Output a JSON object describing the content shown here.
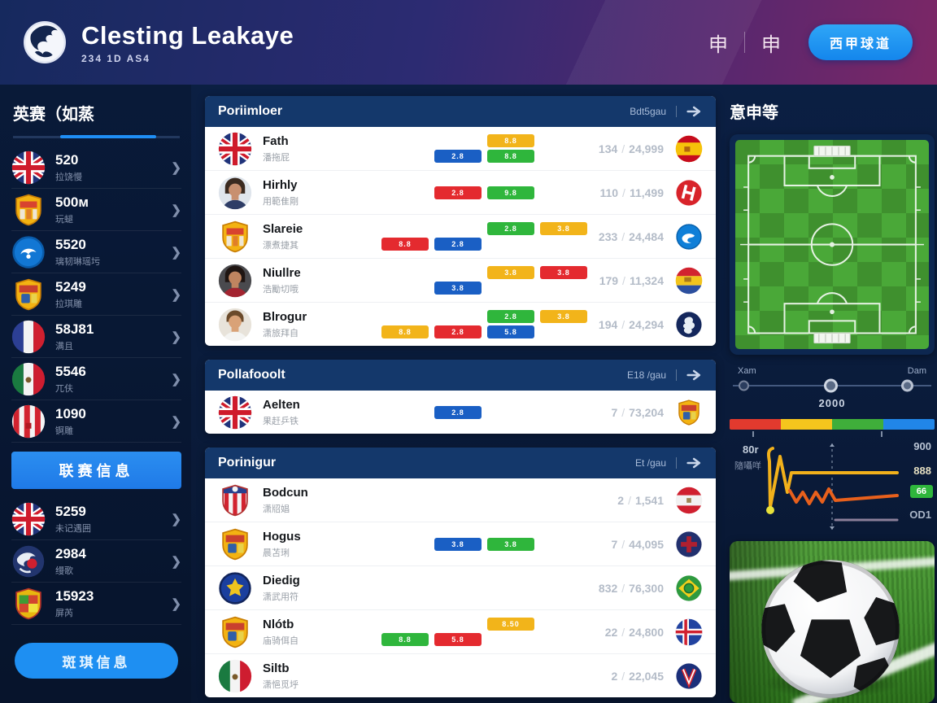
{
  "header": {
    "title": "Clesting Leakaye",
    "subtitle": "234 1D AS4",
    "nav_items": [
      "申",
      "申"
    ],
    "cta_label": "西甲球道"
  },
  "sidebar": {
    "title": "英赛（如蒸",
    "leagues_top": [
      {
        "icon": "uk",
        "value": "520",
        "label": "拉饶慢"
      },
      {
        "icon": "crest-y1",
        "value": "500м",
        "label": "玩螁"
      },
      {
        "icon": "round-blue",
        "value": "5520",
        "label": "璃韧琳瑶圬"
      },
      {
        "icon": "crest-y2",
        "value": "5249",
        "label": "拉琪雕"
      },
      {
        "icon": "france",
        "value": "58J81",
        "label": "满且"
      },
      {
        "icon": "mexico",
        "value": "5546",
        "label": "兀伕"
      },
      {
        "icon": "stripes-rw",
        "value": "1090",
        "label": "锕雕"
      }
    ],
    "mid_button_label": "联赛信息",
    "leagues_bottom": [
      {
        "icon": "uk",
        "value": "5259",
        "label": "未记遇囲"
      },
      {
        "icon": "globe",
        "value": "2984",
        "label": "缦歌"
      },
      {
        "icon": "crest-badge",
        "value": "15923",
        "label": "屏芮"
      }
    ],
    "bottom_button_label": "斑琪信息"
  },
  "panels": [
    {
      "title": "Poriimloer",
      "meta": "Bdt5gau",
      "rows": [
        {
          "icon": "uk",
          "name": "Fath",
          "sub": "潘拖屁",
          "badges": [
            {
              "label": "8.8",
              "cls": "b-yellow c3 r1"
            },
            {
              "label": "2.8",
              "cls": "b-blue c2 r2"
            },
            {
              "label": "8.8",
              "cls": "b-green c3 r2"
            }
          ],
          "count": "134",
          "total": "24,999",
          "flag": "spain"
        },
        {
          "icon": "avatar-w1",
          "name": "Hirhly",
          "sub": "用範隹剛",
          "badges": [
            {
              "label": "2.8",
              "cls": "b-red c2 rc"
            },
            {
              "label": "9.8",
              "cls": "b-green c3 rc"
            }
          ],
          "count": "110",
          "total": "11,499",
          "flag": "red-h"
        },
        {
          "icon": "crest-y1",
          "name": "Slareie",
          "sub": "漂煮捷其",
          "badges": [
            {
              "label": "2.8",
              "cls": "b-green c3 r1"
            },
            {
              "label": "3.8",
              "cls": "b-yellow c4 r1"
            },
            {
              "label": "8.8",
              "cls": "b-red c1 r2"
            },
            {
              "label": "2.8",
              "cls": "b-blue c2 r2"
            }
          ],
          "count": "233",
          "total": "24,484",
          "flag": "blue-swirl"
        },
        {
          "icon": "avatar-w2",
          "name": "Niullre",
          "sub": "浩勵切哦",
          "badges": [
            {
              "label": "3.8",
              "cls": "b-yellow c3 r1"
            },
            {
              "label": "3.8",
              "cls": "b-red c4 r1"
            },
            {
              "label": "3.8",
              "cls": "b-blue c2 r2"
            }
          ],
          "count": "179",
          "total": "11,324",
          "flag": "tri-stripe"
        },
        {
          "icon": "avatar-m1",
          "name": "Blrogur",
          "sub": "潇旅拜自",
          "badges": [
            {
              "label": "2.8",
              "cls": "b-green c3 r1"
            },
            {
              "label": "3.8",
              "cls": "b-yellow c4 r1"
            },
            {
              "label": "8.8",
              "cls": "b-yellow c1 r2"
            },
            {
              "label": "2.8",
              "cls": "b-red c2 r2"
            },
            {
              "label": "5.8",
              "cls": "b-blue c3 r2"
            }
          ],
          "count": "194",
          "total": "24,294",
          "flag": "navy-glyph"
        }
      ]
    },
    {
      "title": "Pollafooolt",
      "meta": "E18 /gau",
      "rows": [
        {
          "icon": "uk",
          "name": "Aelten",
          "sub": "果赶乒铁",
          "badges": [
            {
              "label": "2.8",
              "cls": "b-blue c2 rc"
            }
          ],
          "count": "7",
          "total": "73,204",
          "flag": "crest-y2"
        }
      ]
    },
    {
      "title": "Porinigur",
      "meta": "Et /gau",
      "rows": [
        {
          "icon": "crest-striped",
          "name": "Bodcun",
          "sub": "潇牊娼",
          "badges": [],
          "count": "2",
          "total": "1,541",
          "flag": "austria"
        },
        {
          "icon": "crest-y2",
          "name": "Hogus",
          "sub": "晨苫琍",
          "badges": [
            {
              "label": "3.8",
              "cls": "b-blue c2 rc"
            },
            {
              "label": "3.8",
              "cls": "b-green c3 rc"
            }
          ],
          "count": "7",
          "total": "44,095",
          "flag": "navy-red"
        },
        {
          "icon": "crest-blue",
          "name": "Diedig",
          "sub": "潇武用符",
          "badges": [],
          "count": "832",
          "total": "76,300",
          "flag": "brazil"
        },
        {
          "icon": "crest-y2",
          "name": "Nlótb",
          "sub": "庙骑佴自",
          "badges": [
            {
              "label": "8.50",
              "cls": "b-yellow c3 r1"
            },
            {
              "label": "8.8",
              "cls": "b-green c1 r2"
            },
            {
              "label": "5.8",
              "cls": "b-red c2 r2"
            }
          ],
          "count": "22",
          "total": "24,800",
          "flag": "iceland"
        },
        {
          "icon": "mexico",
          "name": "Siltb",
          "sub": "潇悒觅垀",
          "badges": [],
          "count": "2",
          "total": "22,045",
          "flag": "navy-v"
        }
      ]
    }
  ],
  "aside": {
    "title": "意申等",
    "slider": {
      "left_label": "Xam",
      "right_label": "Dam",
      "value": "2000"
    },
    "colorbar_segments": [
      {
        "color": "#e23a2e"
      },
      {
        "color": "#f5c51d"
      },
      {
        "color": "#3fae3a"
      },
      {
        "color": "#2186e8"
      }
    ],
    "stats": {
      "left_top": "80r",
      "left_sub": "隨囁咩",
      "right_top": "900",
      "line_a": "888",
      "line_b": "66",
      "line_c": "OD1"
    }
  },
  "colors": {
    "accent_blue": "#1e8ff2",
    "panel_header": "#14386b",
    "badge_red": "#e42a2f",
    "badge_green": "#2fb63c",
    "badge_yellow": "#f2b41a",
    "badge_blue": "#1a5fc4"
  }
}
